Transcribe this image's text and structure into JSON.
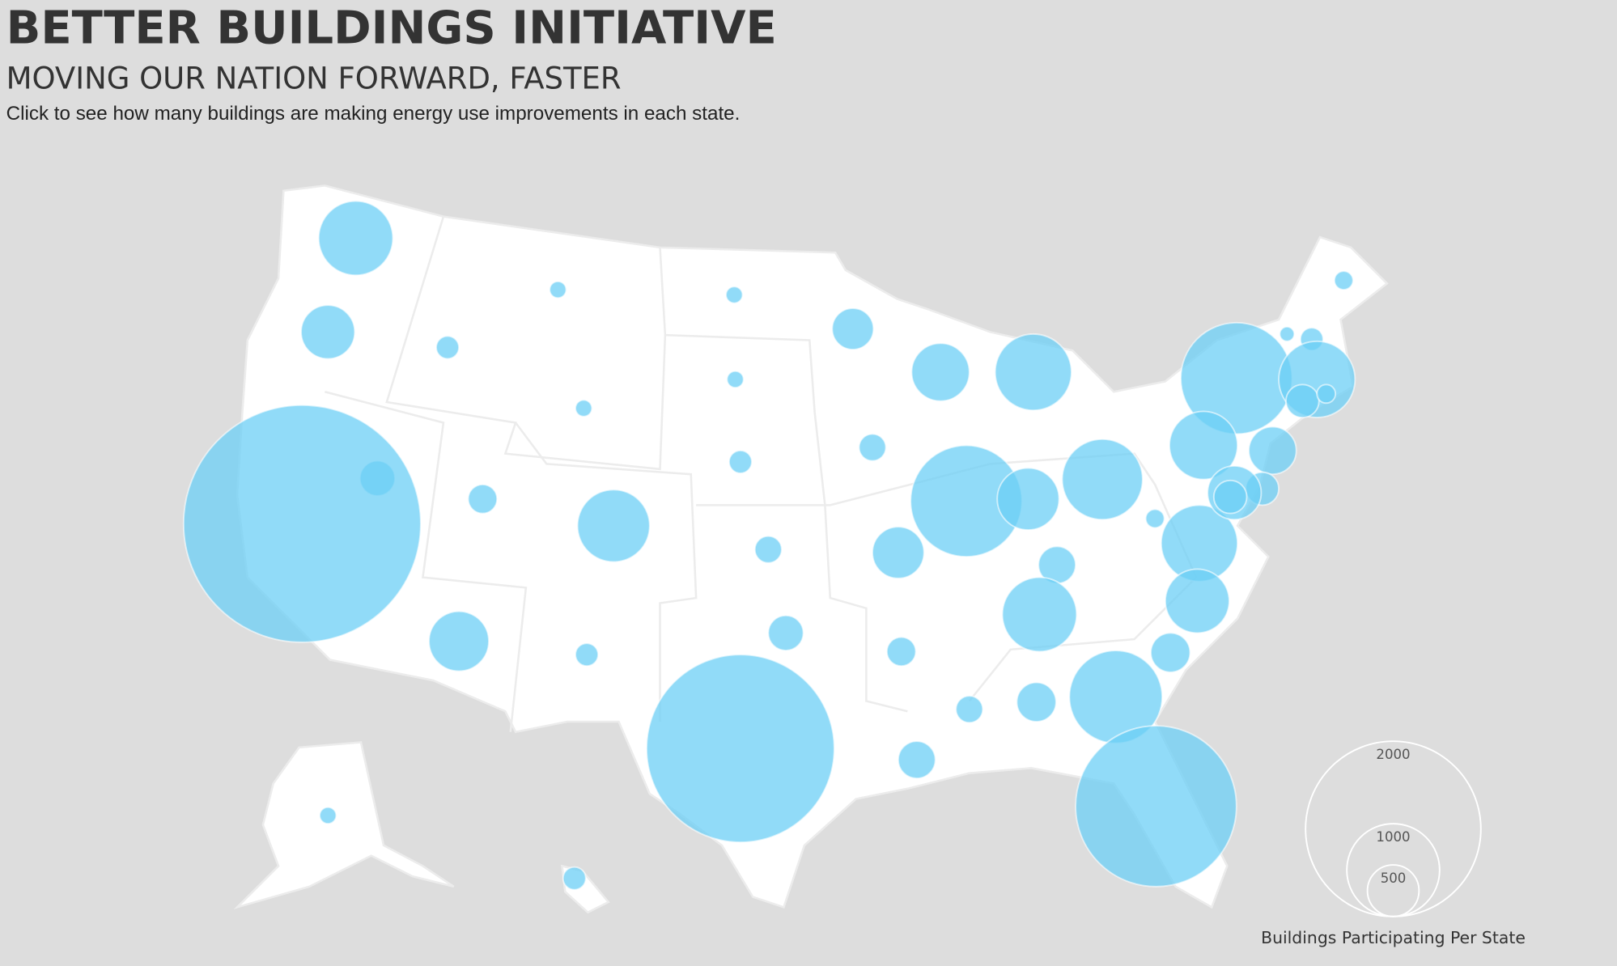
{
  "header": {
    "title": "BETTER BUILDINGS INITIATIVE",
    "subtitle": "MOVING OUR NATION FORWARD, FASTER",
    "instruction": "Click to see how many buildings are making energy use improvements in each state."
  },
  "map": {
    "values": [
      775,
      525,
      150,
      75,
      75,
      375,
      575,
      800,
      75,
      75,
      300,
      2750,
      225,
      750,
      150,
      200,
      1225,
      625,
      850,
      200,
      500,
      325,
      100,
      800,
      600,
      150,
      300,
      225,
      775,
      650,
      350,
      1000,
      350,
      200,
      325,
      2150,
      1825,
      75,
      150,
      100,
      150,
      50,
      1225,
      800,
      275,
      100,
      700,
      450,
      275,
      525,
      275
    ],
    "color": "#6ccff6"
  },
  "legend": {
    "title": "Buildings Participating Per State",
    "sizes": [
      2000,
      1000,
      500
    ]
  }
}
